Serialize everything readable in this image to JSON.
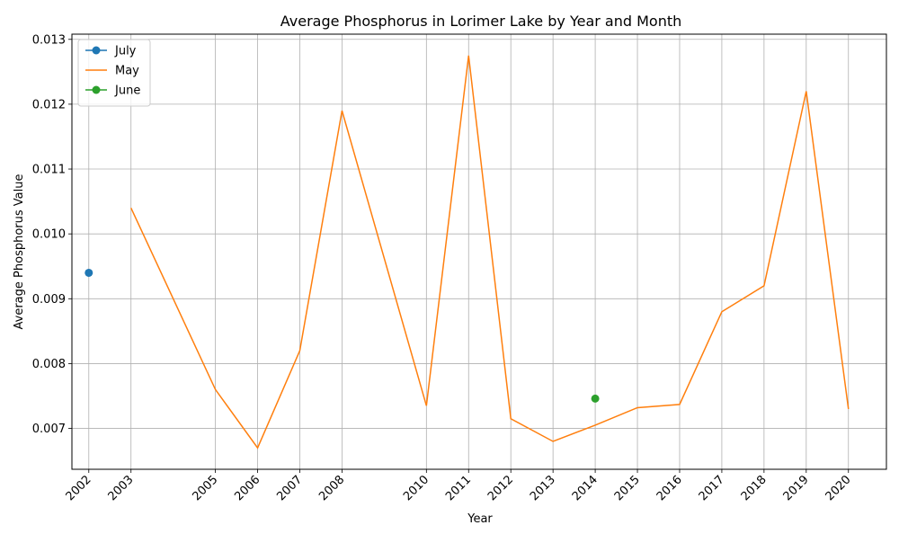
{
  "chart_data": {
    "type": "line",
    "title": "Average Phosphorus in Lorimer Lake by Year and Month",
    "xlabel": "Year",
    "ylabel": "Average Phosphorus Value",
    "xlim": [
      2001.6,
      2020.9
    ],
    "ylim": [
      0.00637,
      0.01308
    ],
    "xticks": [
      2002,
      2003,
      2005,
      2006,
      2007,
      2008,
      2010,
      2011,
      2012,
      2013,
      2014,
      2015,
      2016,
      2017,
      2018,
      2019,
      2020
    ],
    "yticks": [
      0.007,
      0.008,
      0.009,
      0.01,
      0.011,
      0.012,
      0.013
    ],
    "ytick_labels": [
      "0.007",
      "0.008",
      "0.009",
      "0.010",
      "0.011",
      "0.012",
      "0.013"
    ],
    "grid": true,
    "legend_position": "top-left",
    "series": [
      {
        "name": "July",
        "color": "#1f77b4",
        "marker": true,
        "points": [
          [
            2002,
            0.0094
          ]
        ]
      },
      {
        "name": "May",
        "color": "#ff7f0e",
        "marker": false,
        "points": [
          [
            2003,
            0.0104
          ],
          [
            2005,
            0.0076
          ],
          [
            2006,
            0.0067
          ],
          [
            2007,
            0.0082
          ],
          [
            2008,
            0.0119
          ],
          [
            2010,
            0.00735
          ],
          [
            2011,
            0.01275
          ],
          [
            2012,
            0.00715
          ],
          [
            2013,
            0.0068
          ],
          [
            2014,
            0.00705
          ],
          [
            2015,
            0.00732
          ],
          [
            2016,
            0.00737
          ],
          [
            2017,
            0.0088
          ],
          [
            2018,
            0.0092
          ],
          [
            2019,
            0.0122
          ],
          [
            2020,
            0.0073
          ]
        ]
      },
      {
        "name": "June",
        "color": "#2ca02c",
        "marker": true,
        "points": [
          [
            2014,
            0.00746
          ]
        ]
      }
    ]
  }
}
